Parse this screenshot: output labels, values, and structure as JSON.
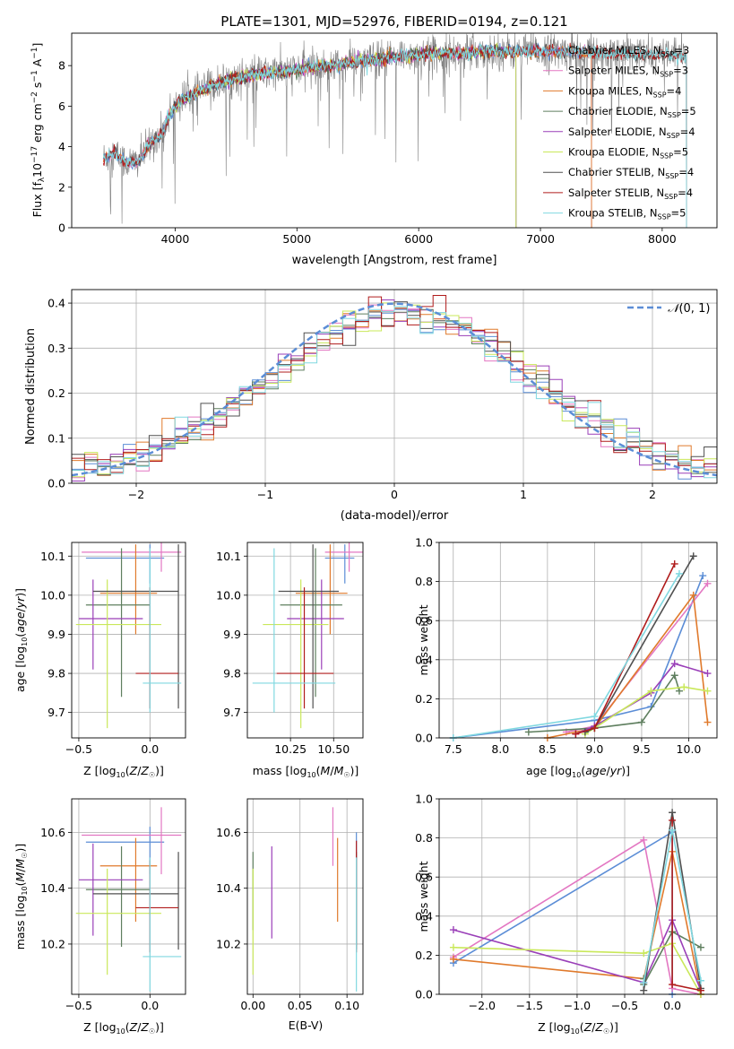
{
  "figure_title": "PLATE=1301, MJD=52976, FIBERID=0194, z=0.121",
  "colors": {
    "Chabrier MILES": "#5b8dd6",
    "Salpeter MILES": "#e377c2",
    "Kroupa MILES": "#e07a2c",
    "Chabrier ELODIE": "#5f7f5f",
    "Salpeter ELODIE": "#9a3fb8",
    "Kroupa ELODIE": "#c9e85a",
    "Chabrier STELIB": "#505050",
    "Salpeter STELIB": "#b01c1c",
    "Kroupa STELIB": "#80d8e0",
    "normal": "#5b8dd6"
  },
  "chart_data": [
    {
      "id": "spectrum",
      "type": "line",
      "title": "PLATE=1301, MJD=52976, FIBERID=0194, z=0.121",
      "xlabel": "wavelength [Angstrom, rest frame]",
      "ylabel": "Flux [f_λ 10^-17 erg cm^-2 s^-1 A^-1]",
      "xlim": [
        3150,
        8450
      ],
      "ylim": [
        0,
        9.6
      ],
      "xticks": [
        4000,
        5000,
        6000,
        7000,
        8000
      ],
      "yticks": [
        0,
        2,
        4,
        6,
        8
      ],
      "grid": false,
      "legend": "top-right",
      "series": [
        {
          "name": "Chabrier MILES",
          "nssp": "3",
          "model_range": [
            3410,
            7420
          ]
        },
        {
          "name": "Salpeter MILES",
          "nssp": "3",
          "model_range": [
            3410,
            7420
          ]
        },
        {
          "name": "Kroupa MILES",
          "nssp": "4",
          "model_range": [
            3410,
            7420
          ]
        },
        {
          "name": "Chabrier ELODIE",
          "nssp": "5",
          "model_range": [
            3900,
            6800
          ]
        },
        {
          "name": "Salpeter ELODIE",
          "nssp": "4",
          "model_range": [
            3900,
            6800
          ]
        },
        {
          "name": "Kroupa ELODIE",
          "nssp": "5",
          "model_range": [
            3900,
            6800
          ]
        },
        {
          "name": "Chabrier STELIB",
          "nssp": "4",
          "model_range": [
            3410,
            8200
          ]
        },
        {
          "name": "Salpeter STELIB",
          "nssp": "4",
          "model_range": [
            3410,
            8200
          ]
        },
        {
          "name": "Kroupa STELIB",
          "nssp": "5",
          "model_range": [
            3410,
            8200
          ]
        }
      ],
      "continuum": {
        "wavelength": [
          3400,
          3500,
          3600,
          3700,
          3800,
          3900,
          3950,
          4050,
          4150,
          4300,
          4500,
          4700,
          4900,
          5100,
          5300,
          5500,
          5700,
          5900,
          6100,
          6300,
          6500,
          6700,
          6900,
          7100,
          7300,
          7500,
          7700,
          7900,
          8100,
          8200
        ],
        "flux": [
          3.4,
          3.7,
          3.2,
          3.3,
          4.2,
          4.7,
          5.6,
          6.3,
          6.6,
          7.0,
          7.4,
          7.6,
          7.7,
          7.9,
          8.0,
          8.2,
          8.3,
          8.5,
          8.6,
          8.6,
          8.7,
          8.7,
          8.7,
          8.7,
          8.7,
          8.6,
          8.6,
          8.5,
          8.5,
          8.4
        ]
      }
    },
    {
      "id": "residuals",
      "type": "bar",
      "xlabel": "(data-model)/error",
      "ylabel": "Normed distribution",
      "xlim": [
        -2.5,
        2.5
      ],
      "ylim": [
        0,
        0.43
      ],
      "xticks": [
        -2,
        -1,
        0,
        1,
        2
      ],
      "yticks": [
        0.0,
        0.1,
        0.2,
        0.3,
        0.4
      ],
      "grid": true,
      "legend": "top-right",
      "normal_label": "N(0,1)",
      "bins": 50
    },
    {
      "id": "age-vs-Z",
      "type": "scatter",
      "xlabel": "Z [log10(Z/Z☉)]",
      "ylabel": "age [log10(age/yr)]",
      "xlim": [
        -0.55,
        0.25
      ],
      "ylim": [
        9.635,
        10.135
      ],
      "xticks": [
        -0.5,
        0.0
      ],
      "yticks": [
        9.7,
        9.8,
        9.9,
        10.0,
        10.1
      ],
      "grid": true
    },
    {
      "id": "age-vs-mass",
      "type": "scatter",
      "xlabel": "mass [log10(M/M☉)]",
      "ylabel": "",
      "xlim": [
        10.0,
        10.67
      ],
      "ylim": [
        9.635,
        10.135
      ],
      "xticks": [
        10.25,
        10.5
      ],
      "yticks": [
        9.7,
        9.8,
        9.9,
        10.0,
        10.1
      ],
      "grid": true
    },
    {
      "id": "massweight-vs-age",
      "type": "line",
      "xlabel": "age [log10(age/yr)]",
      "ylabel": "mass weight",
      "xlim": [
        7.35,
        10.3
      ],
      "ylim": [
        0,
        1
      ],
      "xticks": [
        7.5,
        8.0,
        8.5,
        9.0,
        9.5,
        10.0
      ],
      "yticks": [
        0.0,
        0.2,
        0.4,
        0.6,
        0.8,
        1.0
      ],
      "grid": true
    },
    {
      "id": "mass-vs-Z",
      "type": "scatter",
      "xlabel": "Z [log10(Z/Z☉)]",
      "ylabel": "mass [log10(M/M☉)]",
      "xlim": [
        -0.55,
        0.25
      ],
      "ylim": [
        10.02,
        10.72
      ],
      "xticks": [
        -0.5,
        0.0
      ],
      "yticks": [
        10.2,
        10.4,
        10.6
      ],
      "grid": true
    },
    {
      "id": "mass-vs-EBV",
      "type": "scatter",
      "xlabel": "E(B-V)",
      "ylabel": "",
      "xlim": [
        -0.006,
        0.117
      ],
      "ylim": [
        10.02,
        10.72
      ],
      "xticks": [
        0.0,
        0.05,
        0.1
      ],
      "yticks": [
        10.2,
        10.4,
        10.6
      ],
      "grid": true
    },
    {
      "id": "massweight-vs-Z",
      "type": "line",
      "xlabel": "Z [log10(Z/Z☉)]",
      "ylabel": "mass weight",
      "xlim": [
        -2.45,
        0.47
      ],
      "ylim": [
        0,
        1
      ],
      "xticks": [
        -2.0,
        -1.5,
        -1.0,
        -0.5,
        0.0
      ],
      "yticks": [
        0.0,
        0.2,
        0.4,
        0.6,
        0.8,
        1.0
      ],
      "grid": true
    }
  ],
  "fits": [
    {
      "name": "Chabrier MILES",
      "Z": 0.0,
      "Zerr": [
        -0.45,
        0.1
      ],
      "age": 10.095,
      "ageErr": [
        10.03,
        10.13
      ],
      "mass": 10.565,
      "massErr": [
        10.45,
        10.62
      ],
      "ebv": 0.11,
      "ebvErr": [
        10.4,
        10.6
      ],
      "ssp_age": [
        7.5,
        9.0,
        9.6,
        10.15
      ],
      "ssp_w": [
        0.0,
        0.09,
        0.16,
        0.83
      ],
      "ssp_Z": [
        -2.3,
        0.0,
        0.0
      ],
      "ssp_Zw": [
        0.16,
        0.83,
        0.0
      ]
    },
    {
      "name": "Salpeter MILES",
      "Z": 0.08,
      "Zerr": [
        -0.48,
        0.22
      ],
      "age": 10.11,
      "ageErr": [
        10.06,
        10.14
      ],
      "mass": 10.59,
      "massErr": [
        10.45,
        10.69
      ],
      "ebv": 0.085,
      "ebvErr": [
        10.48,
        10.69
      ],
      "ssp_age": [
        8.7,
        9.0,
        10.2
      ],
      "ssp_w": [
        0.03,
        0.06,
        0.79
      ],
      "ssp_Z": [
        -2.3,
        -0.3,
        0.0,
        0.3
      ],
      "ssp_Zw": [
        0.19,
        0.79,
        0.03,
        0.0
      ]
    },
    {
      "name": "Kroupa MILES",
      "Z": -0.1,
      "Zerr": [
        -0.35,
        0.05
      ],
      "age": 10.005,
      "ageErr": [
        9.9,
        10.13
      ],
      "mass": 10.48,
      "massErr": [
        10.28,
        10.58
      ],
      "ebv": 0.09,
      "ebvErr": [
        10.28,
        10.58
      ],
      "ssp_age": [
        8.5,
        9.0,
        10.05,
        10.2
      ],
      "ssp_w": [
        0.0,
        0.05,
        0.73,
        0.08
      ],
      "ssp_Z": [
        -2.3,
        -0.3,
        0.0,
        0.3
      ],
      "ssp_Zw": [
        0.18,
        0.08,
        0.73,
        0.0
      ]
    },
    {
      "name": "Chabrier ELODIE",
      "Z": -0.2,
      "Zerr": [
        -0.45,
        0.0
      ],
      "age": 9.975,
      "ageErr": [
        9.74,
        10.12
      ],
      "mass": 10.395,
      "massErr": [
        10.19,
        10.55
      ],
      "ebv": 0.0,
      "ebvErr": [
        10.25,
        10.53
      ],
      "ssp_age": [
        8.3,
        9.0,
        9.5,
        9.85,
        9.9
      ],
      "ssp_w": [
        0.03,
        0.05,
        0.08,
        0.32,
        0.24
      ],
      "ssp_Z": [
        -0.3,
        -0.3,
        0.0,
        0.3
      ],
      "ssp_Zw": [
        0.08,
        0.05,
        0.32,
        0.24
      ]
    },
    {
      "name": "Salpeter ELODIE",
      "Z": -0.4,
      "Zerr": [
        -0.5,
        -0.05
      ],
      "age": 9.94,
      "ageErr": [
        9.81,
        10.04
      ],
      "mass": 10.43,
      "massErr": [
        10.23,
        10.56
      ],
      "ebv": 0.02,
      "ebvErr": [
        10.22,
        10.55
      ],
      "ssp_age": [
        8.8,
        9.0,
        9.6,
        9.85,
        10.2
      ],
      "ssp_w": [
        0.02,
        0.06,
        0.23,
        0.38,
        0.33
      ],
      "ssp_Z": [
        -2.3,
        -0.3,
        0.0,
        0.3
      ],
      "ssp_Zw": [
        0.33,
        0.06,
        0.38,
        0.02
      ]
    },
    {
      "name": "Kroupa ELODIE",
      "Z": -0.3,
      "Zerr": [
        -0.52,
        0.08
      ],
      "age": 9.925,
      "ageErr": [
        9.66,
        10.04
      ],
      "mass": 10.31,
      "massErr": [
        10.09,
        10.47
      ],
      "ebv": 0.0,
      "ebvErr": [
        10.09,
        10.47
      ],
      "ssp_age": [
        8.9,
        9.0,
        9.6,
        9.95,
        10.2
      ],
      "ssp_w": [
        0.02,
        0.05,
        0.24,
        0.26,
        0.24
      ],
      "ssp_Z": [
        -2.3,
        -0.3,
        0.0,
        0.3
      ],
      "ssp_Zw": [
        0.24,
        0.21,
        0.26,
        0.0
      ]
    },
    {
      "name": "Chabrier STELIB",
      "Z": 0.2,
      "Zerr": [
        -0.4,
        0.2
      ],
      "age": 10.01,
      "ageErr": [
        9.71,
        10.13
      ],
      "mass": 10.38,
      "massErr": [
        10.18,
        10.53
      ],
      "ebv": 0.11,
      "ebvErr": [
        10.18,
        10.53
      ],
      "ssp_age": [
        8.9,
        9.0,
        10.05
      ],
      "ssp_w": [
        0.03,
        0.05,
        0.93
      ],
      "ssp_Z": [
        -0.3,
        0.0,
        0.3
      ],
      "ssp_Zw": [
        0.02,
        0.93,
        0.03
      ]
    },
    {
      "name": "Salpeter STELIB",
      "Z": 0.0,
      "Zerr": [
        -0.1,
        0.2
      ],
      "age": 9.8,
      "ageErr": [
        9.71,
        10.02
      ],
      "mass": 10.33,
      "massErr": [
        10.17,
        10.5
      ],
      "ebv": 0.11,
      "ebvErr": [
        10.17,
        10.57
      ],
      "ssp_age": [
        8.8,
        9.0,
        9.85
      ],
      "ssp_w": [
        0.02,
        0.05,
        0.89
      ],
      "ssp_Z": [
        0.0,
        0.0,
        0.3
      ],
      "ssp_Zw": [
        0.89,
        0.05,
        0.02
      ]
    },
    {
      "name": "Kroupa STELIB",
      "Z": 0.0,
      "Zerr": [
        -0.05,
        0.22
      ],
      "age": 9.775,
      "ageErr": [
        9.7,
        10.12
      ],
      "mass": 10.155,
      "massErr": [
        10.03,
        10.51
      ],
      "ebv": 0.11,
      "ebvErr": [
        10.03,
        10.51
      ],
      "ssp_age": [
        7.5,
        9.0,
        9.9
      ],
      "ssp_w": [
        0.0,
        0.11,
        0.84
      ],
      "ssp_Z": [
        -0.3,
        0.0,
        0.3
      ],
      "ssp_Zw": [
        0.06,
        0.84,
        0.07
      ]
    }
  ]
}
